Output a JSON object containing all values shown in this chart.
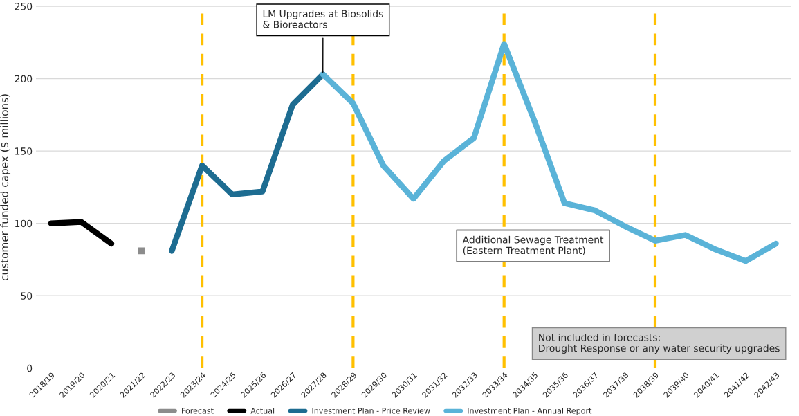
{
  "chart_data": {
    "type": "line",
    "ylabel": "customer funded capex ($ millions)",
    "categories": [
      "2018/19",
      "2019/20",
      "2020/21",
      "2021/22",
      "2022/23",
      "2023/24",
      "2024/25",
      "2025/26",
      "2026/27",
      "2027/28",
      "2028/29",
      "2029/30",
      "2030/31",
      "2031/32",
      "2032/33",
      "2033/34",
      "2034/35",
      "2035/36",
      "2036/37",
      "2037/38",
      "2038/39",
      "2039/40",
      "2040/41",
      "2041/42",
      "2042/43"
    ],
    "series": [
      {
        "name": "Forecast",
        "color": "#8c8c8c",
        "marker": "square",
        "values": [
          null,
          null,
          null,
          81,
          null,
          null,
          null,
          null,
          null,
          null,
          null,
          null,
          null,
          null,
          null,
          null,
          null,
          null,
          null,
          null,
          null,
          null,
          null,
          null,
          null
        ]
      },
      {
        "name": "Actual",
        "color": "#000000",
        "values": [
          100,
          101,
          86,
          null,
          null,
          null,
          null,
          null,
          null,
          null,
          null,
          null,
          null,
          null,
          null,
          null,
          null,
          null,
          null,
          null,
          null,
          null,
          null,
          null,
          null
        ]
      },
      {
        "name": "Investment Plan - Price Review",
        "color": "#1d6c91",
        "values": [
          null,
          null,
          null,
          null,
          81,
          140,
          120,
          122,
          182,
          203,
          null,
          null,
          null,
          null,
          null,
          null,
          null,
          null,
          null,
          null,
          null,
          null,
          null,
          null,
          null
        ]
      },
      {
        "name": "Investment Plan - Annual Report",
        "color": "#5ab3d8",
        "values": [
          null,
          null,
          null,
          null,
          null,
          null,
          null,
          null,
          null,
          203,
          183,
          140,
          117,
          143,
          159,
          224,
          171,
          114,
          109,
          98,
          88,
          92,
          82,
          74,
          86
        ]
      }
    ],
    "ylim": [
      0,
      250
    ],
    "yticks": [
      0,
      50,
      100,
      150,
      200,
      250
    ],
    "grid": "y",
    "legend": "bottom",
    "ref_lines": [
      {
        "axis": "x",
        "value": "2023/24",
        "color": "#ffc000",
        "line_style": "dashed"
      },
      {
        "axis": "x",
        "value": "2028/29",
        "color": "#ffc000",
        "line_style": "dashed"
      },
      {
        "axis": "x",
        "value": "2033/34",
        "color": "#ffc000",
        "line_style": "dashed"
      },
      {
        "axis": "x",
        "value": "2038/39",
        "color": "#ffc000",
        "line_style": "dashed"
      }
    ],
    "annotations": [
      {
        "text": "LM Upgrades at Biosolids\n& Bioreactors",
        "x": "2027/28",
        "y": 203
      },
      "Additional Sewage Treatment\n(Eastern Treatment Plant)",
      "Not included in forecasts:\nDrought Response or any water security upgrades"
    ]
  }
}
